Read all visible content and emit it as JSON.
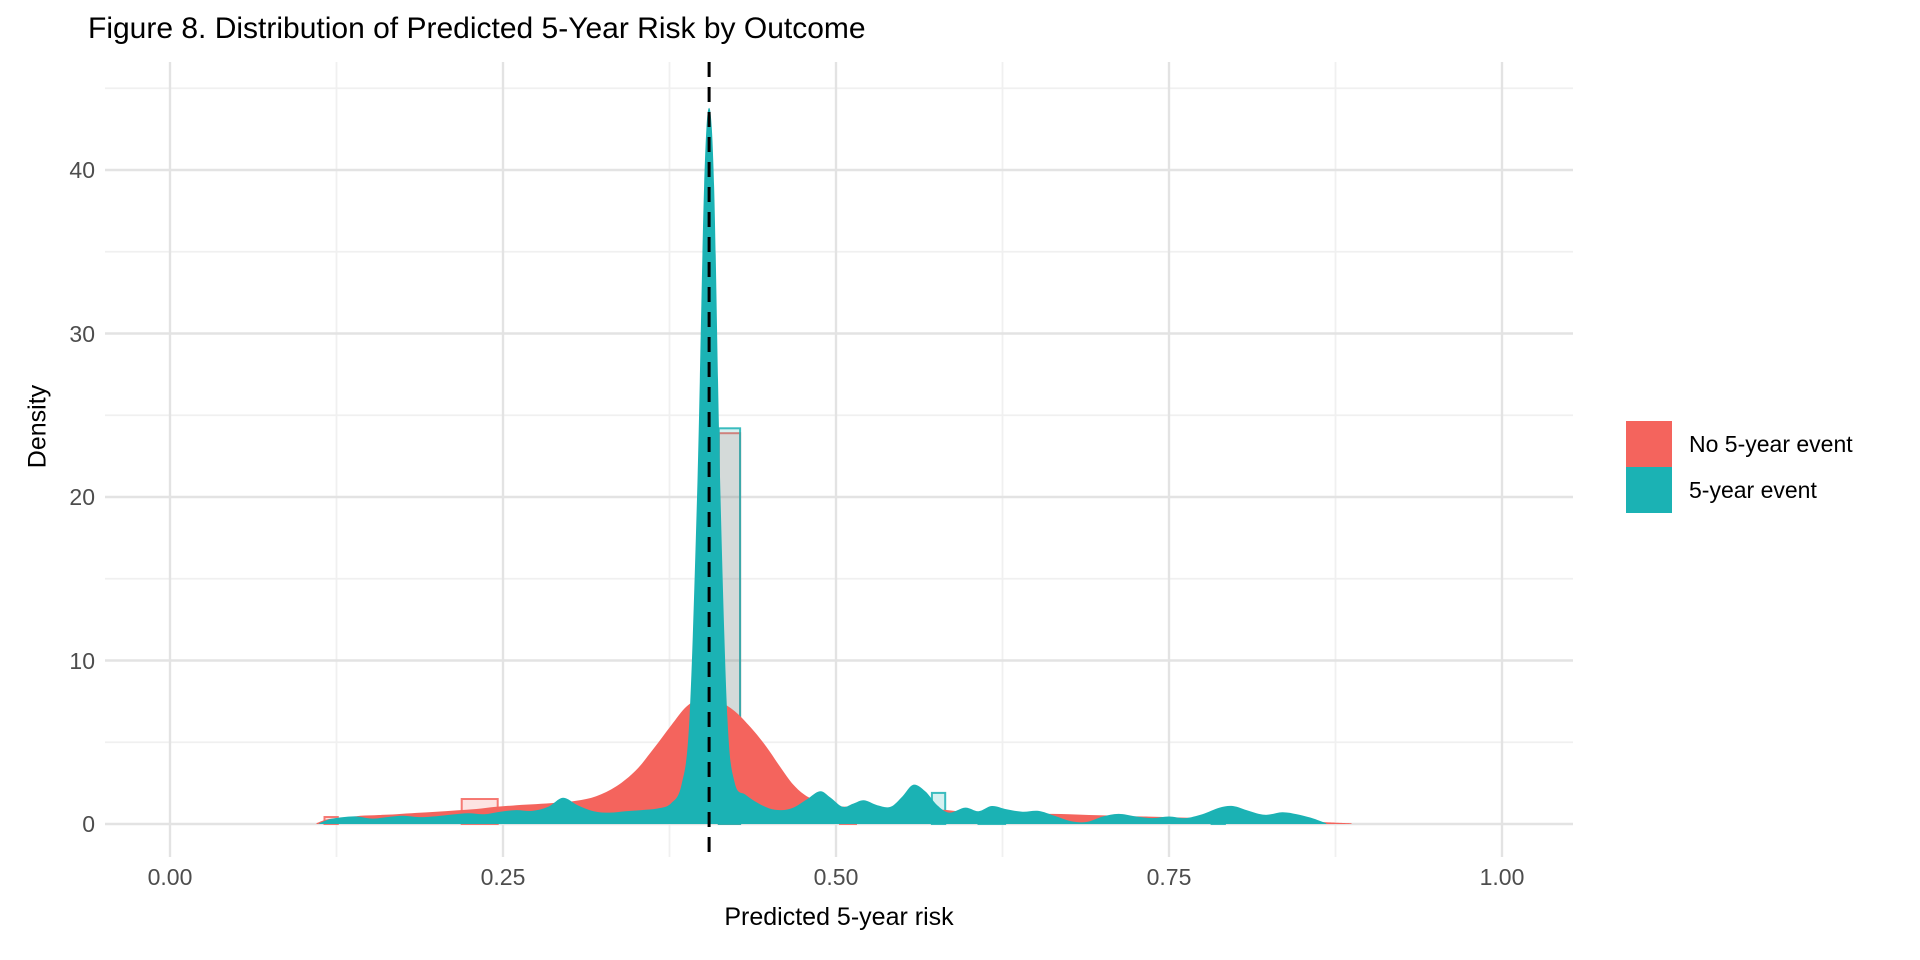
{
  "chart_data": {
    "type": "area",
    "title": "Figure 8. Distribution of Predicted 5-Year Risk by Outcome",
    "xlabel": "Predicted 5-year risk",
    "ylabel": "Density",
    "xlim": [
      -0.049,
      1.053
    ],
    "ylim": [
      0,
      46.7
    ],
    "x_ticks": [
      0.0,
      0.25,
      0.5,
      0.75,
      1.0
    ],
    "x_tick_labels": [
      "0.00",
      "0.25",
      "0.50",
      "0.75",
      "1.00"
    ],
    "x_minor_gridlines": [
      0.125,
      0.375,
      0.625,
      0.875
    ],
    "y_ticks": [
      0,
      10,
      20,
      30,
      40
    ],
    "y_tick_labels": [
      "0",
      "10",
      "20",
      "30",
      "40"
    ],
    "y_minor_gridlines": [
      5,
      15,
      25,
      35,
      45
    ],
    "grid": "on",
    "vline": {
      "x": 0.4047,
      "style": "dashed",
      "color": "#000000"
    },
    "legend": {
      "position": "right",
      "entries": [
        {
          "label": "No 5-year event",
          "color": "#F4645D"
        },
        {
          "label": "5-year event",
          "color": "#1BB2B4"
        }
      ]
    },
    "series": [
      {
        "name": "No 5-year event",
        "color": "#F4645D",
        "points": [
          [
            0.11,
            0.05
          ],
          [
            0.118,
            0.28
          ],
          [
            0.13,
            0.38
          ],
          [
            0.143,
            0.5
          ],
          [
            0.157,
            0.55
          ],
          [
            0.17,
            0.6
          ],
          [
            0.185,
            0.68
          ],
          [
            0.2,
            0.75
          ],
          [
            0.215,
            0.83
          ],
          [
            0.23,
            0.92
          ],
          [
            0.245,
            1.05
          ],
          [
            0.26,
            1.15
          ],
          [
            0.275,
            1.22
          ],
          [
            0.29,
            1.3
          ],
          [
            0.305,
            1.42
          ],
          [
            0.32,
            1.7
          ],
          [
            0.335,
            2.3
          ],
          [
            0.35,
            3.3
          ],
          [
            0.363,
            4.6
          ],
          [
            0.376,
            6.0
          ],
          [
            0.388,
            7.2
          ],
          [
            0.4,
            7.7
          ],
          [
            0.412,
            7.5
          ],
          [
            0.424,
            6.9
          ],
          [
            0.436,
            5.9
          ],
          [
            0.448,
            4.7
          ],
          [
            0.458,
            3.5
          ],
          [
            0.468,
            2.4
          ],
          [
            0.478,
            1.7
          ],
          [
            0.49,
            1.3
          ],
          [
            0.502,
            1.1
          ],
          [
            0.515,
            0.92
          ],
          [
            0.53,
            0.8
          ],
          [
            0.545,
            0.74
          ],
          [
            0.56,
            0.8
          ],
          [
            0.573,
            0.9
          ],
          [
            0.587,
            0.82
          ],
          [
            0.6,
            0.68
          ],
          [
            0.615,
            0.56
          ],
          [
            0.63,
            0.52
          ],
          [
            0.645,
            0.56
          ],
          [
            0.66,
            0.62
          ],
          [
            0.675,
            0.6
          ],
          [
            0.69,
            0.55
          ],
          [
            0.705,
            0.52
          ],
          [
            0.72,
            0.48
          ],
          [
            0.735,
            0.45
          ],
          [
            0.75,
            0.42
          ],
          [
            0.765,
            0.38
          ],
          [
            0.78,
            0.35
          ],
          [
            0.795,
            0.3
          ],
          [
            0.81,
            0.27
          ],
          [
            0.825,
            0.23
          ],
          [
            0.84,
            0.19
          ],
          [
            0.855,
            0.15
          ],
          [
            0.87,
            0.1
          ],
          [
            0.887,
            0.04
          ]
        ]
      },
      {
        "name": "5-year event",
        "color": "#1BB2B4",
        "points": [
          [
            0.112,
            0.04
          ],
          [
            0.12,
            0.3
          ],
          [
            0.13,
            0.42
          ],
          [
            0.14,
            0.46
          ],
          [
            0.152,
            0.33
          ],
          [
            0.163,
            0.42
          ],
          [
            0.175,
            0.5
          ],
          [
            0.187,
            0.42
          ],
          [
            0.2,
            0.48
          ],
          [
            0.212,
            0.58
          ],
          [
            0.224,
            0.66
          ],
          [
            0.236,
            0.6
          ],
          [
            0.248,
            0.75
          ],
          [
            0.26,
            0.85
          ],
          [
            0.272,
            0.8
          ],
          [
            0.284,
            1.05
          ],
          [
            0.295,
            1.6
          ],
          [
            0.306,
            1.15
          ],
          [
            0.318,
            0.78
          ],
          [
            0.33,
            0.7
          ],
          [
            0.342,
            0.78
          ],
          [
            0.354,
            0.85
          ],
          [
            0.366,
            0.95
          ],
          [
            0.376,
            1.25
          ],
          [
            0.384,
            2.4
          ],
          [
            0.39,
            6.5
          ],
          [
            0.396,
            21
          ],
          [
            0.401,
            39
          ],
          [
            0.4047,
            43.8
          ],
          [
            0.4085,
            39
          ],
          [
            0.413,
            21
          ],
          [
            0.4185,
            6.5
          ],
          [
            0.424,
            2.5
          ],
          [
            0.432,
            1.8
          ],
          [
            0.441,
            1.3
          ],
          [
            0.45,
            0.95
          ],
          [
            0.459,
            0.85
          ],
          [
            0.468,
            1.0
          ],
          [
            0.478,
            1.5
          ],
          [
            0.488,
            2.0
          ],
          [
            0.496,
            1.6
          ],
          [
            0.505,
            1.05
          ],
          [
            0.513,
            1.25
          ],
          [
            0.521,
            1.45
          ],
          [
            0.531,
            1.15
          ],
          [
            0.541,
            1.05
          ],
          [
            0.55,
            1.7
          ],
          [
            0.558,
            2.4
          ],
          [
            0.567,
            2.0
          ],
          [
            0.576,
            1.15
          ],
          [
            0.585,
            0.7
          ],
          [
            0.597,
            1.0
          ],
          [
            0.607,
            0.78
          ],
          [
            0.617,
            1.1
          ],
          [
            0.628,
            0.9
          ],
          [
            0.64,
            0.75
          ],
          [
            0.652,
            0.8
          ],
          [
            0.664,
            0.5
          ],
          [
            0.676,
            0.18
          ],
          [
            0.688,
            0.12
          ],
          [
            0.7,
            0.45
          ],
          [
            0.712,
            0.62
          ],
          [
            0.724,
            0.48
          ],
          [
            0.737,
            0.36
          ],
          [
            0.75,
            0.46
          ],
          [
            0.762,
            0.36
          ],
          [
            0.775,
            0.6
          ],
          [
            0.788,
            1.0
          ],
          [
            0.798,
            1.1
          ],
          [
            0.81,
            0.8
          ],
          [
            0.822,
            0.56
          ],
          [
            0.835,
            0.72
          ],
          [
            0.846,
            0.6
          ],
          [
            0.856,
            0.4
          ],
          [
            0.863,
            0.2
          ],
          [
            0.868,
            0.05
          ]
        ]
      }
    ],
    "histogram_bars": [
      {
        "series": 0,
        "x0": 0.116,
        "x1": 0.126,
        "height": 0.43
      },
      {
        "series": 0,
        "x0": 0.219,
        "x1": 0.246,
        "height": 1.53
      },
      {
        "series": 0,
        "x0": 0.412,
        "x1": 0.428,
        "height": 23.9
      },
      {
        "series": 0,
        "x0": 0.503,
        "x1": 0.515,
        "height": 1.0
      },
      {
        "series": 1,
        "x0": 0.412,
        "x1": 0.428,
        "height": 24.2
      },
      {
        "series": 1,
        "x0": 0.572,
        "x1": 0.582,
        "height": 1.9
      },
      {
        "series": 1,
        "x0": 0.607,
        "x1": 0.627,
        "height": 0.6
      },
      {
        "series": 1,
        "x0": 0.782,
        "x1": 0.792,
        "height": 0.65
      }
    ]
  }
}
